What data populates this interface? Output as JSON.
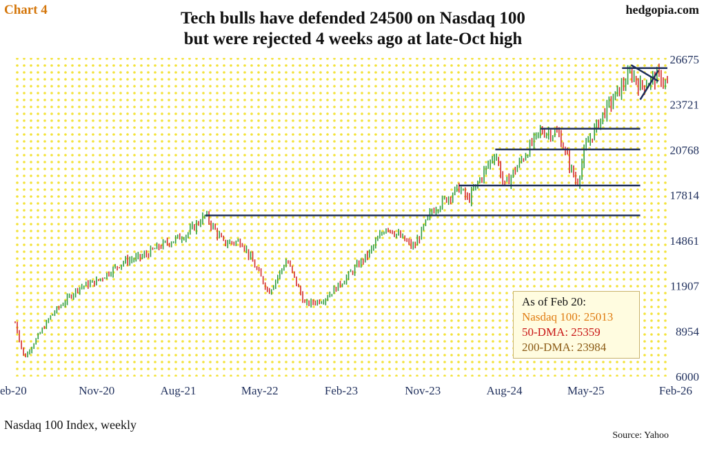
{
  "header": {
    "chart_label": "Chart 4",
    "site": "hedgopia.com",
    "title_line1": "Tech bulls have defended 24500 on Nasdaq 100",
    "title_line2": "but were rejected 4 weeks ago at late-Oct high"
  },
  "footer": {
    "footnote": "Nasdaq 100 Index, weekly",
    "source": "Source: Yahoo"
  },
  "legend": {
    "heading": "As of Feb 20:",
    "items": [
      {
        "label": "Nasdaq 100: 25013",
        "color": "#e07b10"
      },
      {
        "label": "50-DMA: 25359",
        "color": "#c81414"
      },
      {
        "label": "200-DMA: 23984",
        "color": "#8b5a14"
      }
    ]
  },
  "colors": {
    "up": "#2e9e3e",
    "down": "#d42a2a",
    "lines": "#1c2d5a",
    "axis_text": "#1f2f5c",
    "background_dots": "#f3e23a",
    "accent": "#d4760a"
  },
  "chart_data": {
    "type": "candlestick",
    "frequency": "weekly",
    "x_ticks": [
      "eb-20",
      "Nov-20",
      "Aug-21",
      "May-22",
      "Feb-23",
      "Nov-23",
      "Aug-24",
      "May-25",
      "Feb-26"
    ],
    "y_ticks": [
      6000,
      8954,
      11907,
      14861,
      17814,
      20768,
      23721,
      26675
    ],
    "ylim": [
      6000,
      26675
    ],
    "xlim": [
      "2020-02",
      "2026-02"
    ],
    "price_anchors": [
      {
        "date": "2020-02",
        "close": 9500
      },
      {
        "date": "2020-03",
        "close": 7200
      },
      {
        "date": "2020-06",
        "close": 10000
      },
      {
        "date": "2020-09",
        "close": 11800
      },
      {
        "date": "2020-11",
        "close": 12200
      },
      {
        "date": "2021-02",
        "close": 13500
      },
      {
        "date": "2021-04",
        "close": 13800
      },
      {
        "date": "2021-06",
        "close": 14500
      },
      {
        "date": "2021-09",
        "close": 15300
      },
      {
        "date": "2021-11",
        "close": 16500
      },
      {
        "date": "2022-01",
        "close": 14700
      },
      {
        "date": "2022-03",
        "close": 14800
      },
      {
        "date": "2022-06",
        "close": 11500
      },
      {
        "date": "2022-08",
        "close": 13600
      },
      {
        "date": "2022-10",
        "close": 10700
      },
      {
        "date": "2022-12",
        "close": 11000
      },
      {
        "date": "2023-02",
        "close": 12100
      },
      {
        "date": "2023-05",
        "close": 14000
      },
      {
        "date": "2023-07",
        "close": 15800
      },
      {
        "date": "2023-10",
        "close": 14400
      },
      {
        "date": "2023-12",
        "close": 16800
      },
      {
        "date": "2024-03",
        "close": 18300
      },
      {
        "date": "2024-04",
        "close": 17500
      },
      {
        "date": "2024-07",
        "close": 20600
      },
      {
        "date": "2024-08",
        "close": 18400
      },
      {
        "date": "2024-12",
        "close": 22000
      },
      {
        "date": "2025-02",
        "close": 21800
      },
      {
        "date": "2025-04",
        "close": 18500
      },
      {
        "date": "2025-05",
        "close": 21000
      },
      {
        "date": "2025-07",
        "close": 23200
      },
      {
        "date": "2025-10",
        "close": 25800
      },
      {
        "date": "2025-11",
        "close": 24900
      },
      {
        "date": "2026-01",
        "close": 25600
      },
      {
        "date": "2026-02",
        "close": 25013
      }
    ],
    "horizontal_lines": [
      {
        "value": 16500,
        "from": "2021-11",
        "to": "2025-11"
      },
      {
        "value": 18450,
        "from": "2024-03",
        "to": "2025-11"
      },
      {
        "value": 20800,
        "from": "2024-07",
        "to": "2025-11"
      },
      {
        "value": 22150,
        "from": "2024-12",
        "to": "2025-11"
      },
      {
        "value": 26100,
        "from": "2025-09",
        "to": "2026-02"
      }
    ],
    "trendlines": [
      {
        "from": {
          "date": "2025-10",
          "value": 26300
        },
        "to": {
          "date": "2026-01",
          "value": 25250
        }
      },
      {
        "from": {
          "date": "2025-11",
          "value": 24050
        },
        "to": {
          "date": "2026-01",
          "value": 25950
        }
      }
    ],
    "legend_placement": "bottom-right",
    "grid": false
  }
}
